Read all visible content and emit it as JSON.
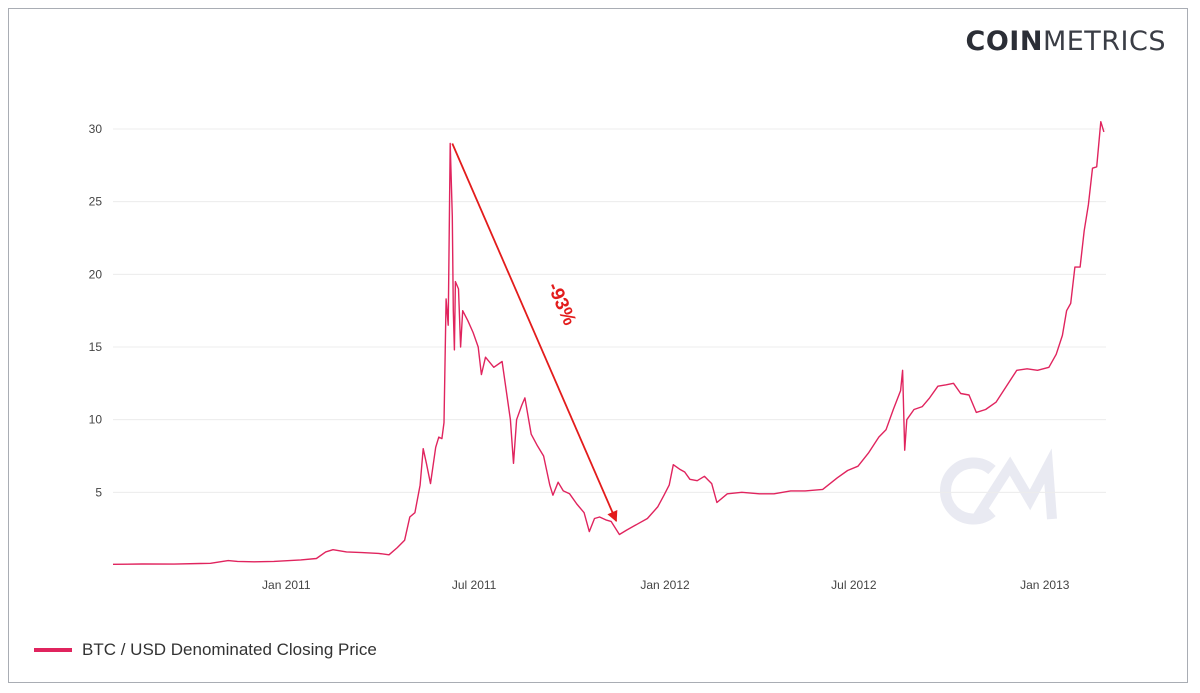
{
  "brand": {
    "part1": "COIN",
    "part2": "METRICS"
  },
  "colors": {
    "series": "#e0245e",
    "annotation": "#e31c1c",
    "grid": "#ececec",
    "watermark": "#e9eaf2"
  },
  "legend": {
    "label": "BTC / USD Denominated Closing Price"
  },
  "chart_data": {
    "type": "line",
    "title": "",
    "xlabel": "",
    "ylabel": "",
    "ylim": [
      0,
      30
    ],
    "xlim": [
      "2010-07-18",
      "2013-03-01"
    ],
    "yticks": [
      "5",
      "10",
      "15",
      "20",
      "25",
      "30"
    ],
    "xticks": [
      {
        "date": "2011-01-01",
        "label": "Jan 2011"
      },
      {
        "date": "2011-07-01",
        "label": "Jul 2011"
      },
      {
        "date": "2012-01-01",
        "label": "Jan 2012"
      },
      {
        "date": "2012-07-01",
        "label": "Jul 2012"
      },
      {
        "date": "2013-01-01",
        "label": "Jan 2013"
      }
    ],
    "grid": true,
    "legend_position": "bottom-left",
    "series": [
      {
        "name": "BTC / USD Denominated Closing Price",
        "points": [
          [
            "2010-07-18",
            0.05
          ],
          [
            "2010-08-15",
            0.07
          ],
          [
            "2010-09-15",
            0.06
          ],
          [
            "2010-10-10",
            0.1
          ],
          [
            "2010-10-20",
            0.12
          ],
          [
            "2010-11-06",
            0.3
          ],
          [
            "2010-11-15",
            0.25
          ],
          [
            "2010-12-01",
            0.22
          ],
          [
            "2010-12-20",
            0.25
          ],
          [
            "2011-01-15",
            0.35
          ],
          [
            "2011-01-30",
            0.45
          ],
          [
            "2011-02-08",
            0.9
          ],
          [
            "2011-02-15",
            1.05
          ],
          [
            "2011-02-28",
            0.9
          ],
          [
            "2011-03-15",
            0.85
          ],
          [
            "2011-03-31",
            0.8
          ],
          [
            "2011-04-10",
            0.7
          ],
          [
            "2011-04-18",
            1.2
          ],
          [
            "2011-04-25",
            1.7
          ],
          [
            "2011-04-30",
            3.3
          ],
          [
            "2011-05-05",
            3.6
          ],
          [
            "2011-05-10",
            5.5
          ],
          [
            "2011-05-13",
            8.0
          ],
          [
            "2011-05-16",
            7.0
          ],
          [
            "2011-05-20",
            5.6
          ],
          [
            "2011-05-25",
            8.1
          ],
          [
            "2011-05-28",
            8.8
          ],
          [
            "2011-05-31",
            8.7
          ],
          [
            "2011-06-02",
            9.8
          ],
          [
            "2011-06-04",
            18.3
          ],
          [
            "2011-06-06",
            16.5
          ],
          [
            "2011-06-08",
            29.0
          ],
          [
            "2011-06-10",
            24.0
          ],
          [
            "2011-06-11",
            17.5
          ],
          [
            "2011-06-12",
            14.8
          ],
          [
            "2011-06-13",
            19.5
          ],
          [
            "2011-06-16",
            19.0
          ],
          [
            "2011-06-18",
            15.0
          ],
          [
            "2011-06-20",
            17.5
          ],
          [
            "2011-06-25",
            16.8
          ],
          [
            "2011-06-30",
            16.0
          ],
          [
            "2011-07-05",
            15.0
          ],
          [
            "2011-07-08",
            13.1
          ],
          [
            "2011-07-12",
            14.3
          ],
          [
            "2011-07-20",
            13.6
          ],
          [
            "2011-07-28",
            14.0
          ],
          [
            "2011-08-05",
            10.0
          ],
          [
            "2011-08-08",
            7.0
          ],
          [
            "2011-08-11",
            10.0
          ],
          [
            "2011-08-16",
            11.0
          ],
          [
            "2011-08-19",
            11.5
          ],
          [
            "2011-08-25",
            9.0
          ],
          [
            "2011-08-31",
            8.2
          ],
          [
            "2011-09-06",
            7.5
          ],
          [
            "2011-09-12",
            5.5
          ],
          [
            "2011-09-15",
            4.8
          ],
          [
            "2011-09-20",
            5.7
          ],
          [
            "2011-09-25",
            5.1
          ],
          [
            "2011-10-01",
            4.9
          ],
          [
            "2011-10-08",
            4.2
          ],
          [
            "2011-10-15",
            3.6
          ],
          [
            "2011-10-20",
            2.3
          ],
          [
            "2011-10-25",
            3.2
          ],
          [
            "2011-10-30",
            3.3
          ],
          [
            "2011-11-05",
            3.1
          ],
          [
            "2011-11-10",
            3.0
          ],
          [
            "2011-11-18",
            2.1
          ],
          [
            "2011-11-25",
            2.4
          ],
          [
            "2011-12-05",
            2.8
          ],
          [
            "2011-12-15",
            3.2
          ],
          [
            "2011-12-25",
            4.0
          ],
          [
            "2011-12-31",
            4.8
          ],
          [
            "2012-01-05",
            5.5
          ],
          [
            "2012-01-09",
            6.9
          ],
          [
            "2012-01-15",
            6.6
          ],
          [
            "2012-01-20",
            6.4
          ],
          [
            "2012-01-25",
            5.9
          ],
          [
            "2012-02-01",
            5.8
          ],
          [
            "2012-02-08",
            6.1
          ],
          [
            "2012-02-15",
            5.6
          ],
          [
            "2012-02-20",
            4.3
          ],
          [
            "2012-03-01",
            4.9
          ],
          [
            "2012-03-15",
            5.0
          ],
          [
            "2012-04-01",
            4.9
          ],
          [
            "2012-04-15",
            4.9
          ],
          [
            "2012-05-01",
            5.1
          ],
          [
            "2012-05-15",
            5.1
          ],
          [
            "2012-06-01",
            5.2
          ],
          [
            "2012-06-15",
            6.0
          ],
          [
            "2012-06-25",
            6.5
          ],
          [
            "2012-07-05",
            6.8
          ],
          [
            "2012-07-15",
            7.7
          ],
          [
            "2012-07-25",
            8.8
          ],
          [
            "2012-08-01",
            9.3
          ],
          [
            "2012-08-08",
            10.7
          ],
          [
            "2012-08-15",
            12.0
          ],
          [
            "2012-08-17",
            13.4
          ],
          [
            "2012-08-19",
            7.9
          ],
          [
            "2012-08-21",
            10.0
          ],
          [
            "2012-08-28",
            10.7
          ],
          [
            "2012-09-05",
            10.9
          ],
          [
            "2012-09-12",
            11.5
          ],
          [
            "2012-09-20",
            12.3
          ],
          [
            "2012-09-28",
            12.4
          ],
          [
            "2012-10-05",
            12.5
          ],
          [
            "2012-10-12",
            11.8
          ],
          [
            "2012-10-20",
            11.7
          ],
          [
            "2012-10-27",
            10.5
          ],
          [
            "2012-11-05",
            10.7
          ],
          [
            "2012-11-15",
            11.2
          ],
          [
            "2012-11-25",
            12.3
          ],
          [
            "2012-12-05",
            13.4
          ],
          [
            "2012-12-15",
            13.5
          ],
          [
            "2012-12-25",
            13.4
          ],
          [
            "2013-01-05",
            13.6
          ],
          [
            "2013-01-12",
            14.5
          ],
          [
            "2013-01-18",
            15.8
          ],
          [
            "2013-01-22",
            17.5
          ],
          [
            "2013-01-26",
            18.0
          ],
          [
            "2013-01-30",
            20.5
          ],
          [
            "2013-02-04",
            20.5
          ],
          [
            "2013-02-08",
            23.0
          ],
          [
            "2013-02-12",
            24.8
          ],
          [
            "2013-02-16",
            27.3
          ],
          [
            "2013-02-20",
            27.4
          ],
          [
            "2013-02-24",
            30.5
          ],
          [
            "2013-02-27",
            29.8
          ]
        ]
      }
    ],
    "annotations": [
      {
        "type": "arrow",
        "from": [
          "2011-06-10",
          29.0
        ],
        "to": [
          "2011-11-15",
          2.2
        ],
        "label": "-93%"
      }
    ]
  }
}
